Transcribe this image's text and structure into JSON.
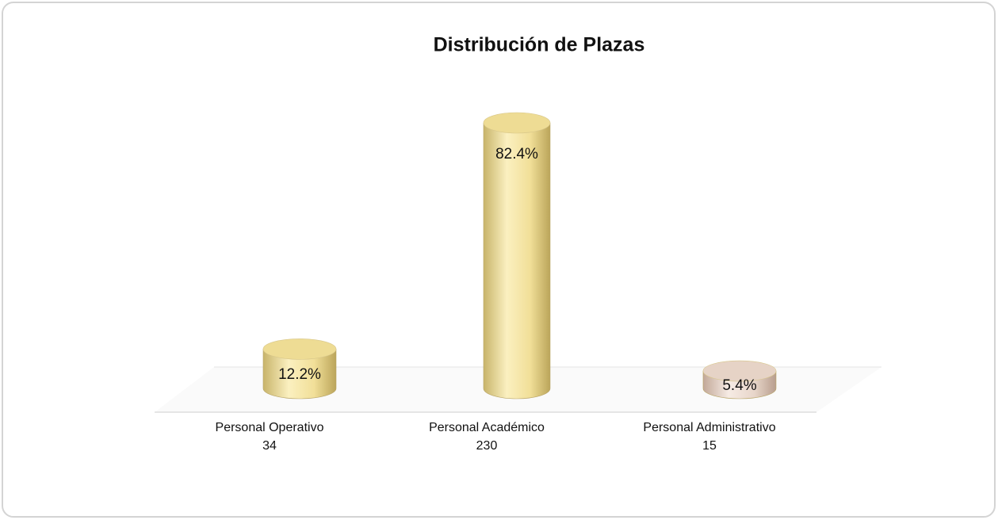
{
  "chart_data": {
    "type": "cylinder",
    "title": "Distribución de  Plazas",
    "categories": [
      "Personal Operativo",
      "Personal Académico",
      "Personal Administrativo"
    ],
    "counts": [
      34,
      230,
      15
    ],
    "values": [
      12.2,
      82.4,
      5.4
    ],
    "value_labels": [
      "12.2%",
      "82.4%",
      "5.4%"
    ],
    "colors": [
      "#eedc94",
      "#eedc94",
      "#e6d3c6"
    ]
  }
}
